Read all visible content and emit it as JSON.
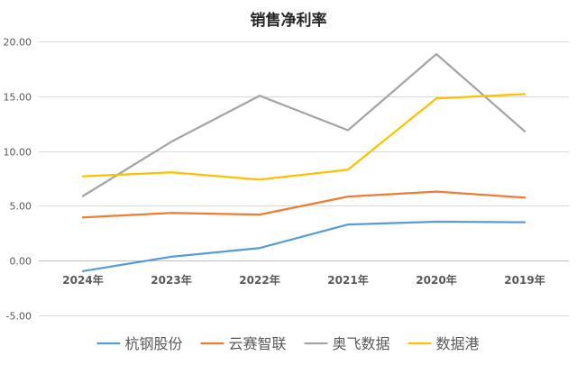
{
  "chart_data": {
    "type": "line",
    "title": "销售净利率",
    "categories": [
      "2024年",
      "2023年",
      "2022年",
      "2021年",
      "2020年",
      "2019年"
    ],
    "ylim": [
      -5,
      20
    ],
    "yticks": [
      "-5.00",
      "0.00",
      "5.00",
      "10.00",
      "15.00",
      "20.00"
    ],
    "grid": true,
    "legend": "bottom",
    "series": [
      {
        "name": "杭钢股份",
        "color": "#5B9BD5",
        "values": [
          -0.95,
          0.35,
          1.15,
          3.3,
          3.55,
          3.5
        ]
      },
      {
        "name": "云赛智联",
        "color": "#ED7D31",
        "values": [
          3.95,
          4.35,
          4.2,
          5.85,
          6.3,
          5.75
        ]
      },
      {
        "name": "奥飞数据",
        "color": "#A5A5A5",
        "values": [
          5.9,
          10.85,
          15.05,
          11.9,
          18.85,
          11.8
        ]
      },
      {
        "name": "数据港",
        "color": "#FFC000",
        "values": [
          7.7,
          8.05,
          7.4,
          8.3,
          14.8,
          15.2
        ]
      }
    ]
  }
}
